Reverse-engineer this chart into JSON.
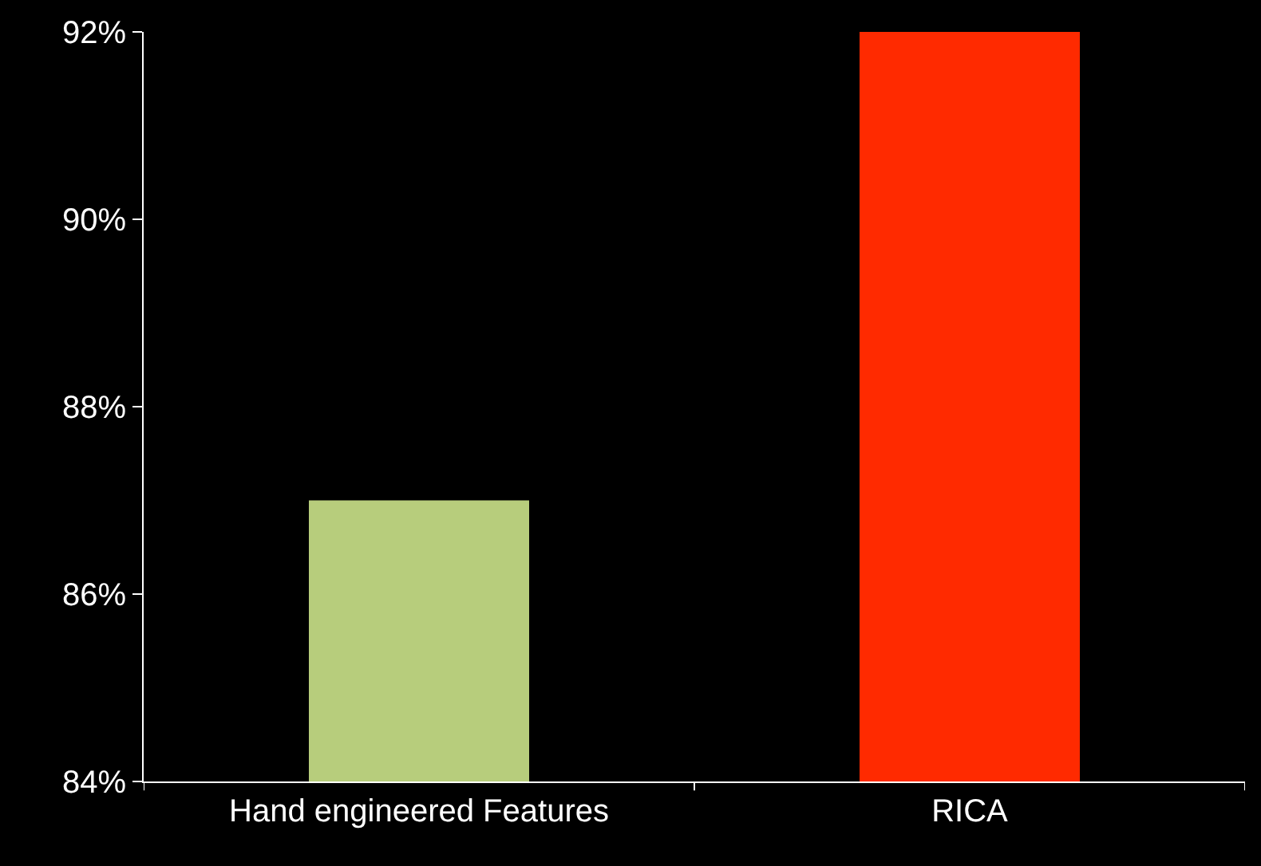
{
  "chart_data": {
    "type": "bar",
    "categories": [
      "Hand engineered Features",
      "RICA"
    ],
    "values": [
      87,
      92
    ],
    "colors": [
      "#b7cd7c",
      "#ff2a00"
    ],
    "ylim": [
      84,
      92
    ],
    "yticks": [
      {
        "value": 84,
        "label": "84%"
      },
      {
        "value": 86,
        "label": "86%"
      },
      {
        "value": 88,
        "label": "88%"
      },
      {
        "value": 90,
        "label": "90%"
      },
      {
        "value": 92,
        "label": "92%"
      }
    ],
    "grid": false
  }
}
